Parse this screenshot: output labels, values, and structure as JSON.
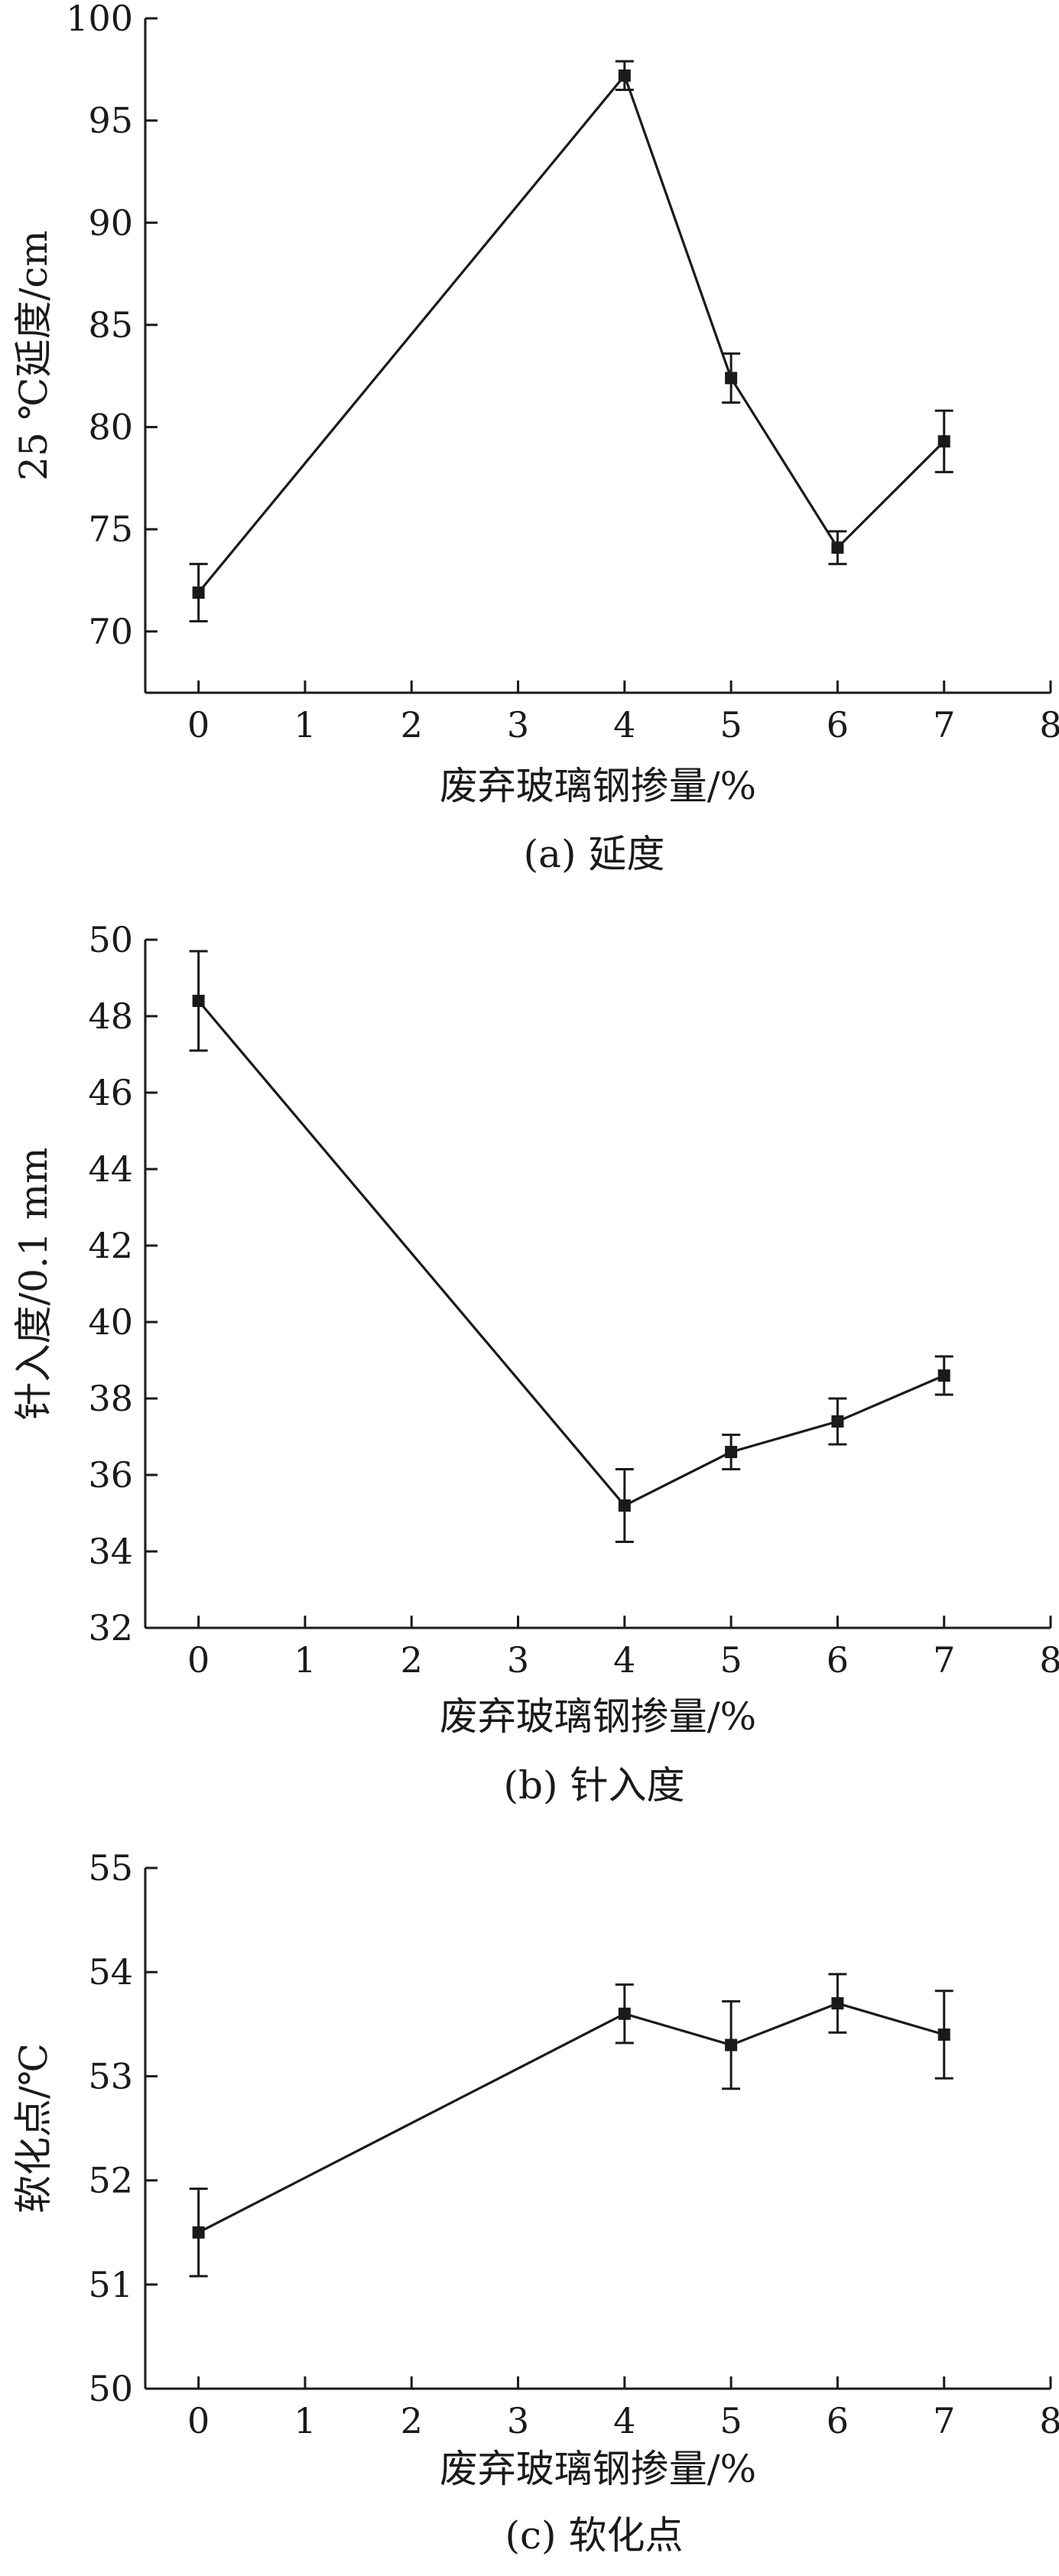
{
  "chart_data": [
    {
      "type": "line",
      "title": "(a) 延度",
      "xlabel": "废弃玻璃钢掺量/%",
      "ylabel": "25 ℃延度/cm",
      "xlim": [
        -0.5,
        8
      ],
      "ylim": [
        67,
        100
      ],
      "xticks": [
        0,
        1,
        2,
        3,
        4,
        5,
        6,
        7,
        8
      ],
      "yticks": [
        70,
        75,
        80,
        85,
        90,
        95,
        100
      ],
      "grid": false,
      "series": [
        {
          "x": [
            0,
            4,
            5,
            6,
            7
          ],
          "y": [
            71.9,
            97.2,
            82.4,
            74.1,
            79.3
          ],
          "error": [
            1.4,
            0.7,
            1.2,
            0.8,
            1.5
          ]
        }
      ]
    },
    {
      "type": "line",
      "title": "(b) 针入度",
      "xlabel": "废弃玻璃钢掺量/%",
      "ylabel": "针入度/0.1 mm",
      "xlim": [
        -0.5,
        8
      ],
      "ylim": [
        32,
        50
      ],
      "xticks": [
        0,
        1,
        2,
        3,
        4,
        5,
        6,
        7,
        8
      ],
      "yticks": [
        32,
        34,
        36,
        38,
        40,
        42,
        44,
        46,
        48,
        50
      ],
      "grid": false,
      "series": [
        {
          "x": [
            0,
            4,
            5,
            6,
            7
          ],
          "y": [
            48.4,
            35.2,
            36.6,
            37.4,
            38.6
          ],
          "error": [
            1.3,
            0.95,
            0.45,
            0.6,
            0.5
          ]
        }
      ]
    },
    {
      "type": "line",
      "title": "(c) 软化点",
      "xlabel": "废弃玻璃钢掺量/%",
      "ylabel": "软化点/℃",
      "xlim": [
        -0.5,
        8
      ],
      "ylim": [
        50,
        55
      ],
      "xticks": [
        0,
        1,
        2,
        3,
        4,
        5,
        6,
        7,
        8
      ],
      "yticks": [
        50,
        51,
        52,
        53,
        54,
        55
      ],
      "grid": false,
      "series": [
        {
          "x": [
            0,
            4,
            5,
            6,
            7
          ],
          "y": [
            51.5,
            53.6,
            53.3,
            53.7,
            53.4
          ],
          "error": [
            0.42,
            0.28,
            0.42,
            0.28,
            0.42
          ]
        }
      ]
    }
  ]
}
